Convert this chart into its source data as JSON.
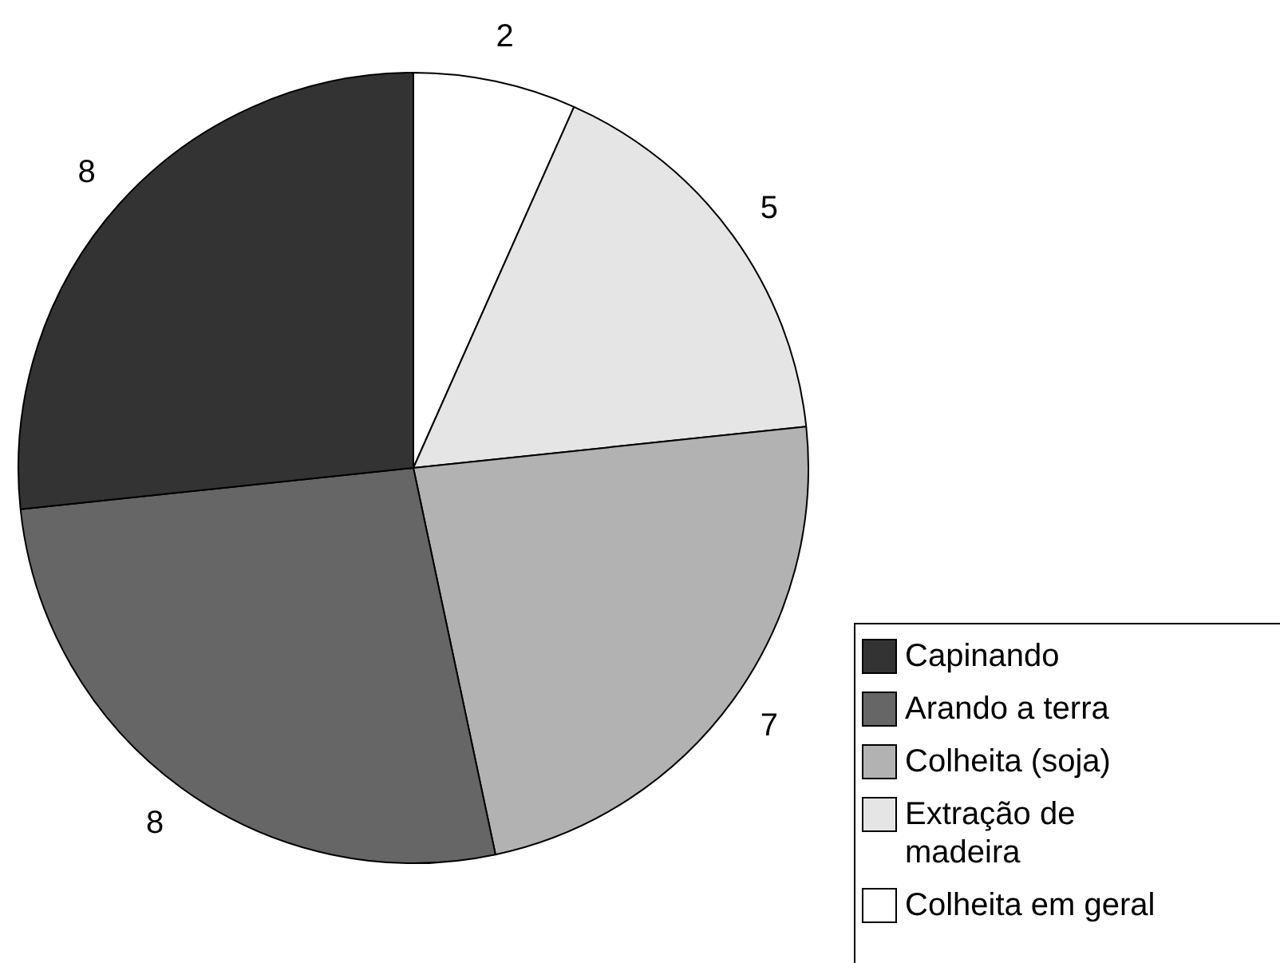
{
  "chart_data": {
    "type": "pie",
    "categories": [
      "Capinando",
      "Arando a terra",
      "Colheita (soja)",
      "Extração de madeira",
      "Colheita em geral"
    ],
    "values": [
      8,
      8,
      7,
      5,
      2
    ],
    "colors": [
      "#333333",
      "#666666",
      "#b2b2b2",
      "#e5e5e5",
      "#ffffff"
    ],
    "data_labels": true,
    "legend": "bottom right"
  }
}
